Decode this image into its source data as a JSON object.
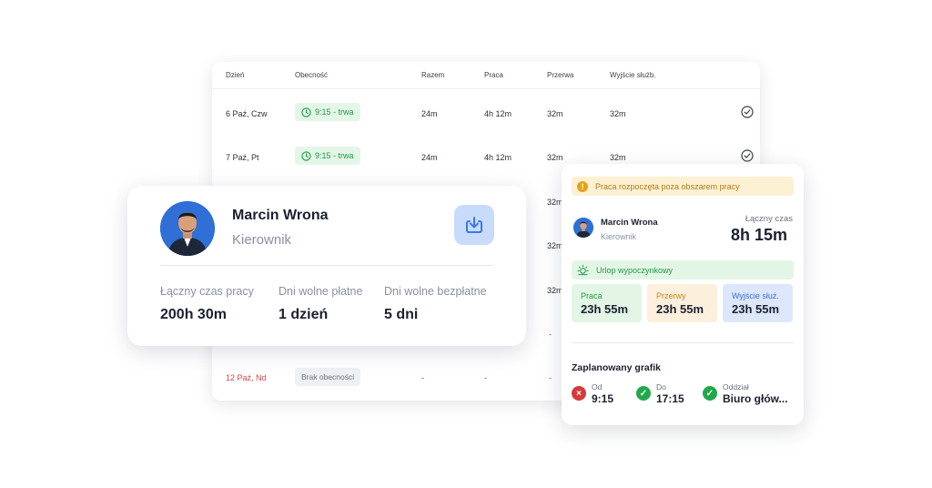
{
  "table": {
    "headers": {
      "day": "Dzień",
      "attendance": "Obecność",
      "total": "Razem",
      "work": "Praca",
      "break": "Przerwa",
      "business_exit": "Wyjście służb."
    },
    "rows": [
      {
        "day": "6 Paź, Czw",
        "attendance": "9:15 - trwa",
        "total": "24m",
        "work": "4h 12m",
        "break": "32m",
        "business_exit": "32m"
      },
      {
        "day": "7 Paź, Pt",
        "attendance": "9:15 - trwa",
        "total": "24m",
        "work": "4h 12m",
        "break": "32m",
        "business_exit": "32m"
      }
    ],
    "partial_break_values": [
      "32m",
      "32m",
      "32m"
    ],
    "partial_dash": "-",
    "last_row": {
      "day": "12 Paź, Nd",
      "attendance": "Brak obecności",
      "total": "-",
      "work": "-",
      "break": "-"
    },
    "colors": {
      "weekend_day": "#d64545"
    }
  },
  "profile": {
    "name": "Marcin Wrona",
    "role": "Kierownik",
    "stats": [
      {
        "label": "Łączny czas pracy",
        "value": "200h 30m"
      },
      {
        "label": "Dni wolne płatne",
        "value": "1 dzień"
      },
      {
        "label": "Dni wolne bezpłatne",
        "value": "5 dni"
      }
    ],
    "download_icon": "download-icon"
  },
  "detail": {
    "warning": "Praca rozpoczęta poza obszarem pracy",
    "name": "Marcin Wrona",
    "role": "Kierownik",
    "total_label": "Łączny czas",
    "total_value": "8h 15m",
    "leave": "Urlop wypoczynkowy",
    "tiles": [
      {
        "label": "Praca",
        "value": "23h 55m",
        "bg": "#e3f6e6",
        "fg": "#1f9a45"
      },
      {
        "label": "Przerwy",
        "value": "23h 55m",
        "bg": "#fcf0dc",
        "fg": "#c7851a"
      },
      {
        "label": "Wyjście służ.",
        "value": "23h 55m",
        "bg": "#dde7fb",
        "fg": "#3b6fd6"
      }
    ],
    "schedule_title": "Zaplanowany grafik",
    "schedule": [
      {
        "label": "Od",
        "value": "9:15",
        "status": "error"
      },
      {
        "label": "Do",
        "value": "17:15",
        "status": "ok"
      },
      {
        "label": "Oddział",
        "value": "Biuro głów...",
        "status": "ok"
      }
    ]
  }
}
